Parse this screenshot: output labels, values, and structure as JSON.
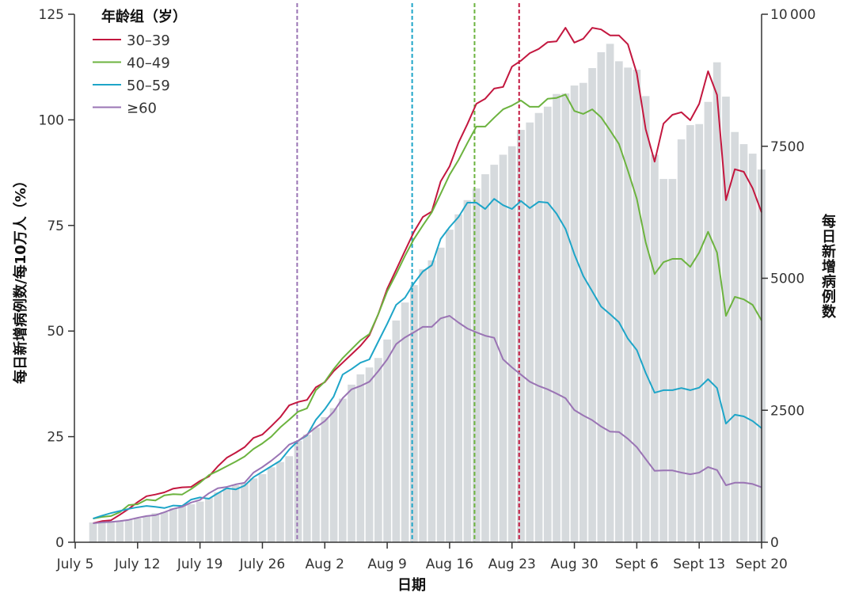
{
  "chart_data": {
    "type": "bar+line",
    "title": "",
    "xlabel": "日期",
    "ylabel_left": "每日新增病例数/每10万人（%）",
    "ylabel_right": "每日新增病例数",
    "x_unit": "days since July 5",
    "xlim": [
      0,
      77
    ],
    "ylim_left": [
      0,
      125
    ],
    "ylim_right": [
      0,
      10000
    ],
    "x_ticks": [
      {
        "day": 0,
        "label": "July 5"
      },
      {
        "day": 7,
        "label": "July 12"
      },
      {
        "day": 14,
        "label": "July 19"
      },
      {
        "day": 21,
        "label": "July 26"
      },
      {
        "day": 28,
        "label": "Aug 2"
      },
      {
        "day": 35,
        "label": "Aug 9"
      },
      {
        "day": 42,
        "label": "Aug 16"
      },
      {
        "day": 49,
        "label": "Aug 23"
      },
      {
        "day": 56,
        "label": "Aug 30"
      },
      {
        "day": 63,
        "label": "Sept 6"
      },
      {
        "day": 70,
        "label": "Sept 13"
      },
      {
        "day": 77,
        "label": "Sept 20"
      }
    ],
    "y_ticks_left": [
      "0",
      "25",
      "50",
      "75",
      "100",
      "125"
    ],
    "y_ticks_right": [
      "0",
      "2500",
      "5000",
      "7500",
      "10000"
    ],
    "grid": false,
    "legend": {
      "title": "年龄组（岁）",
      "position": "top-left"
    },
    "start_day": 2,
    "bars": {
      "name": "每日新增病例数",
      "color": "#d6dadd",
      "values": [
        375,
        375,
        375,
        405,
        420,
        450,
        495,
        550,
        570,
        645,
        690,
        720,
        770,
        845,
        945,
        1020,
        1080,
        1120,
        1210,
        1290,
        1420,
        1520,
        1630,
        1920,
        2040,
        2170,
        2370,
        2540,
        2720,
        2985,
        3180,
        3310,
        3490,
        3840,
        4200,
        4540,
        4870,
        5170,
        5340,
        5580,
        5920,
        6210,
        6480,
        6700,
        6970,
        7150,
        7340,
        7500,
        7810,
        7950,
        8130,
        8250,
        8490,
        8500,
        8650,
        8700,
        8980,
        9280,
        9440,
        9110,
        8990,
        8950,
        8450,
        7340,
        6880,
        6880,
        7630,
        7900,
        7920,
        8340,
        9090,
        8440,
        7770,
        7540,
        7360,
        7060
      ]
    },
    "series": [
      {
        "name": "30–39",
        "color": "#c3173f",
        "values": [
          4.5,
          5,
          5.2,
          6.5,
          7.9,
          9.5,
          10.9,
          11.3,
          11.8,
          12.7,
          13,
          13.1,
          14.5,
          15.6,
          18,
          20,
          21.2,
          22.5,
          24.7,
          25.5,
          27.5,
          29.6,
          32.4,
          33.2,
          33.7,
          36.7,
          37.9,
          40.5,
          42.5,
          44.5,
          46.5,
          49,
          54,
          60,
          64.5,
          69,
          73.5,
          77,
          78.3,
          85.4,
          89,
          94.6,
          99,
          103.8,
          105,
          107.4,
          107.8,
          112.6,
          114,
          115.8,
          116.8,
          118.4,
          118.6,
          121.8,
          118.3,
          119.2,
          121.8,
          121.4,
          120,
          120,
          117.9,
          111,
          97.8,
          90.1,
          99.1,
          101.2,
          101.8,
          99.9,
          103.8,
          111.5,
          105.9,
          81,
          88.3,
          87.7,
          83.8,
          78.1
        ]
      },
      {
        "name": "40–49",
        "color": "#6cb33f",
        "values": [
          5.6,
          6,
          6.2,
          7.1,
          8.8,
          9,
          10.1,
          9.9,
          11.1,
          11.4,
          11.3,
          12.6,
          14.1,
          15.9,
          16.9,
          18,
          19.1,
          20.3,
          22.1,
          23.4,
          25,
          27.2,
          29,
          30.9,
          31.7,
          36,
          38,
          41,
          43.6,
          45.7,
          47.8,
          49.3,
          54,
          59.4,
          63.5,
          67.8,
          71.8,
          75,
          78.1,
          82.5,
          87,
          90.5,
          94.5,
          98.4,
          98.4,
          100.5,
          102.5,
          103.4,
          104.6,
          103.1,
          103.1,
          105,
          105.2,
          106,
          102.1,
          101.4,
          102.5,
          100.6,
          97.5,
          94.3,
          88,
          81.3,
          71,
          63.5,
          66.3,
          67.1,
          67.1,
          65.2,
          68.6,
          73.5,
          68.6,
          53.6,
          58.1,
          57.5,
          56.2,
          52.5
        ]
      },
      {
        "name": "50–59",
        "color": "#1ea5c8",
        "values": [
          5.6,
          6.3,
          6.9,
          7.4,
          7.9,
          8.3,
          8.6,
          8.4,
          8.1,
          8.7,
          8.6,
          10.1,
          10.6,
          10.3,
          11.6,
          12.8,
          12.5,
          13.4,
          15.4,
          16.7,
          18,
          19.3,
          21.9,
          24,
          25.3,
          29,
          31.5,
          34.5,
          39.7,
          41,
          42.5,
          43.3,
          47.5,
          51.7,
          56.2,
          57.9,
          61.3,
          64.1,
          65.6,
          71.8,
          74.6,
          77,
          80.4,
          80.4,
          78.9,
          81.3,
          79.8,
          78.9,
          80.8,
          79.1,
          80.6,
          80.4,
          77.8,
          74.2,
          68.2,
          63,
          59.4,
          55.8,
          54,
          52.1,
          48.2,
          45.5,
          40.1,
          35.4,
          36,
          36,
          36.5,
          36,
          36.6,
          38.6,
          36.5,
          28.1,
          30.2,
          29.8,
          28.7,
          27
        ]
      },
      {
        "name": "≥60",
        "color": "#9a74b4",
        "values": [
          4.5,
          4.7,
          4.8,
          5,
          5.3,
          5.8,
          6.2,
          6.4,
          7.1,
          7.9,
          8.4,
          9.4,
          10,
          11.6,
          12.8,
          13.1,
          13.7,
          14.1,
          16.5,
          17.8,
          19.3,
          21,
          23.1,
          24,
          25.5,
          27.2,
          28.7,
          30.9,
          34.1,
          36.2,
          37,
          38,
          40.5,
          43.3,
          46.9,
          48.5,
          49.7,
          51,
          51,
          53,
          53.6,
          52,
          50.6,
          49.7,
          48.9,
          48.4,
          43.3,
          41.4,
          39.7,
          38,
          37,
          36.2,
          35.2,
          34.1,
          31.3,
          30,
          28.9,
          27.4,
          26.2,
          26.1,
          24.5,
          22.5,
          19.7,
          16.9,
          17,
          17,
          16.5,
          16.1,
          16.5,
          17.8,
          17.1,
          13.5,
          14.1,
          14.1,
          13.8,
          13
        ]
      }
    ],
    "reference_lines": [
      {
        "series": "≥60",
        "day": 24.9,
        "color": "#9a74b4"
      },
      {
        "series": "50–59",
        "day": 37.8,
        "color": "#1ea5c8"
      },
      {
        "series": "40–49",
        "day": 44.8,
        "color": "#6cb33f"
      },
      {
        "series": "30–39",
        "day": 49.8,
        "color": "#c3173f"
      }
    ]
  }
}
